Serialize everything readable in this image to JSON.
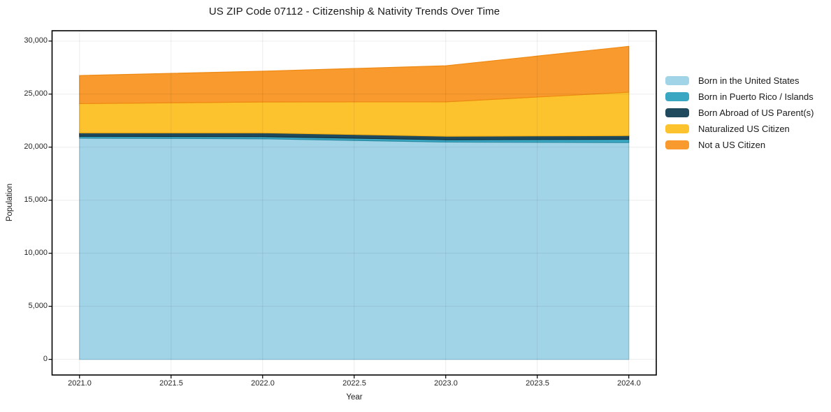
{
  "chart_data": {
    "type": "area",
    "stacked": true,
    "title": "US ZIP Code 07112 - Citizenship & Nativity Trends Over Time",
    "xlabel": "Year",
    "ylabel": "Population",
    "x": [
      2021,
      2022,
      2023,
      2024
    ],
    "series": [
      {
        "name": "Born in the United States",
        "color": "#a2d4e8",
        "edge": "#8ec4dc",
        "values": [
          20850,
          20790,
          20480,
          20430
        ]
      },
      {
        "name": "Born in Puerto Rico / Islands",
        "color": "#3aa7c2",
        "edge": "#2a8aa2",
        "values": [
          170,
          200,
          220,
          310
        ]
      },
      {
        "name": "Born Abroad of US Parent(s)",
        "color": "#1f4a5e",
        "edge": "#14313f",
        "values": [
          330,
          360,
          330,
          350
        ]
      },
      {
        "name": "Naturalized US Citizen",
        "color": "#fdc32f",
        "edge": "#efae15",
        "values": [
          2750,
          2910,
          3240,
          4090
        ]
      },
      {
        "name": "Not a US Citizen",
        "color": "#f89a2d",
        "edge": "#ee8912",
        "values": [
          2650,
          2900,
          3400,
          4320
        ]
      }
    ],
    "totals": [
      26750,
      27160,
      27670,
      29500
    ],
    "xlim": [
      2020.85,
      2024.15
    ],
    "ylim": [
      -1475,
      30975
    ],
    "xticks": {
      "values": [
        2021.0,
        2021.5,
        2022.0,
        2022.5,
        2023.0,
        2023.5,
        2024.0
      ],
      "labels": [
        "2021.0",
        "2021.5",
        "2022.0",
        "2022.5",
        "2023.0",
        "2023.5",
        "2024.0"
      ]
    },
    "yticks": {
      "values": [
        0,
        5000,
        10000,
        15000,
        20000,
        25000,
        30000
      ],
      "labels": [
        "0",
        "5,000",
        "10,000",
        "15,000",
        "20,000",
        "25,000",
        "30,000"
      ]
    },
    "grid": true,
    "grid_color": "rgba(0,0,0,0.075)",
    "frame_color": "#000000",
    "legend_position": "right"
  }
}
